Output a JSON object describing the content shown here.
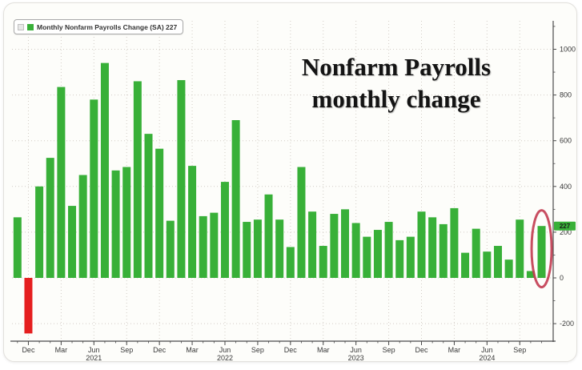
{
  "legend": {
    "label": "Monthly Nonfarm Payrolls Change (SA) 227",
    "swatch_color": "#38b038"
  },
  "title": {
    "line1": "Nonfarm Payrolls",
    "line2": "monthly change"
  },
  "chart_data": {
    "type": "bar",
    "title": "Nonfarm Payrolls monthly change",
    "series_name": "Monthly Nonfarm Payrolls Change (SA)",
    "x": [
      "Nov 2020",
      "Dec 2020",
      "Jan 2021",
      "Feb 2021",
      "Mar 2021",
      "Apr 2021",
      "May 2021",
      "Jun 2021",
      "Jul 2021",
      "Aug 2021",
      "Sep 2021",
      "Oct 2021",
      "Nov 2021",
      "Dec 2021",
      "Jan 2022",
      "Feb 2022",
      "Mar 2022",
      "Apr 2022",
      "May 2022",
      "Jun 2022",
      "Jul 2022",
      "Aug 2022",
      "Sep 2022",
      "Oct 2022",
      "Nov 2022",
      "Dec 2022",
      "Jan 2023",
      "Feb 2023",
      "Mar 2023",
      "Apr 2023",
      "May 2023",
      "Jun 2023",
      "Jul 2023",
      "Aug 2023",
      "Sep 2023",
      "Oct 2023",
      "Nov 2023",
      "Dec 2023",
      "Jan 2024",
      "Feb 2024",
      "Mar 2024",
      "Apr 2024",
      "May 2024",
      "Jun 2024",
      "Jul 2024",
      "Aug 2024",
      "Sep 2024",
      "Oct 2024",
      "Nov 2024"
    ],
    "values": [
      265,
      -243,
      400,
      525,
      835,
      315,
      450,
      780,
      940,
      470,
      485,
      860,
      630,
      565,
      250,
      865,
      490,
      270,
      285,
      420,
      690,
      245,
      255,
      365,
      255,
      135,
      485,
      290,
      140,
      280,
      300,
      240,
      180,
      210,
      245,
      165,
      180,
      290,
      265,
      235,
      305,
      110,
      215,
      115,
      140,
      80,
      255,
      30,
      227
    ],
    "ylim": [
      -290,
      1125
    ],
    "yticks": [
      -200,
      0,
      200,
      400,
      600,
      800,
      1000
    ],
    "y_minor_step": 100,
    "xticks": [
      {
        "index": 1,
        "label": "Dec"
      },
      {
        "index": 4,
        "label": "Mar"
      },
      {
        "index": 7,
        "label": "Jun",
        "year": "2021"
      },
      {
        "index": 10,
        "label": "Sep"
      },
      {
        "index": 13,
        "label": "Dec"
      },
      {
        "index": 16,
        "label": "Mar"
      },
      {
        "index": 19,
        "label": "Jun",
        "year": "2022"
      },
      {
        "index": 22,
        "label": "Sep"
      },
      {
        "index": 25,
        "label": "Dec"
      },
      {
        "index": 28,
        "label": "Mar"
      },
      {
        "index": 31,
        "label": "Jun",
        "year": "2023"
      },
      {
        "index": 34,
        "label": "Sep"
      },
      {
        "index": 37,
        "label": "Dec"
      },
      {
        "index": 40,
        "label": "Mar"
      },
      {
        "index": 43,
        "label": "Jun",
        "year": "2024"
      },
      {
        "index": 46,
        "label": "Sep"
      }
    ],
    "legend_position": "top-left",
    "axis_position": "right",
    "grid": "dotted",
    "annotations": {
      "last_value_badge": "227",
      "circle_last_bar": true
    },
    "colors": {
      "positive_bar": "#38b038",
      "negative_bar": "#e51f1f",
      "bar_edge": "#2c962c",
      "badge_bg": "#38b038",
      "badge_text": "#1c1c1c",
      "ellipse": "#c23b50",
      "grid": "#d2ccc5",
      "axis": "#4a4a4a",
      "tick_text": "#3a3a3a",
      "plot_bg": "#fdfdfa"
    }
  }
}
